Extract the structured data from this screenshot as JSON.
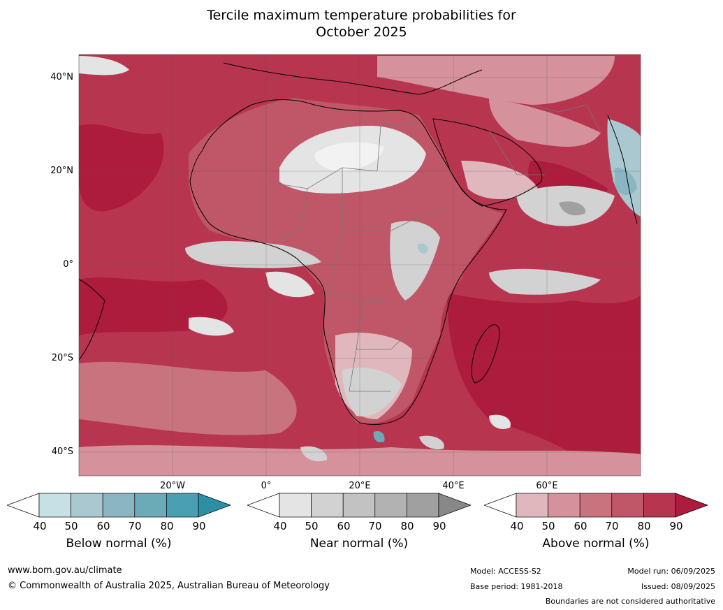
{
  "title_line1": "Tercile maximum temperature probabilities for",
  "title_line2": "October 2025",
  "map": {
    "lat_labels": [
      "40°N",
      "20°N",
      "0°",
      "20°S",
      "40°S"
    ],
    "lon_labels": [
      "20°W",
      "0°",
      "20°E",
      "40°E",
      "60°E"
    ],
    "colors": {
      "above": [
        "#e0b7bd",
        "#d5929c",
        "#c9737f",
        "#bf5768",
        "#b83550",
        "#ad1c3c"
      ],
      "near": [
        "#e4e4e4",
        "#d2d2d2",
        "#c2c2c2",
        "#b2b2b2",
        "#a0a0a0",
        "#888888"
      ],
      "below": [
        "#c7e0e6",
        "#a9c8d0",
        "#8ab6c3",
        "#6caab8",
        "#4a9fb2",
        "#2c8fa3"
      ]
    }
  },
  "legends": [
    {
      "title": "Below normal (%)",
      "ticks": [
        "40",
        "50",
        "60",
        "70",
        "80",
        "90"
      ],
      "colors": [
        "#ffffff",
        "#c7e0e6",
        "#a9c8d0",
        "#8ab6c3",
        "#6caab8",
        "#4a9fb2",
        "#2c8fa3"
      ]
    },
    {
      "title": "Near normal (%)",
      "ticks": [
        "40",
        "50",
        "60",
        "70",
        "80",
        "90"
      ],
      "colors": [
        "#ffffff",
        "#e4e4e4",
        "#d2d2d2",
        "#c2c2c2",
        "#b2b2b2",
        "#a0a0a0",
        "#888888"
      ]
    },
    {
      "title": "Above normal (%)",
      "ticks": [
        "40",
        "50",
        "60",
        "70",
        "80",
        "90"
      ],
      "colors": [
        "#ffffff",
        "#e0b7bd",
        "#d5929c",
        "#c9737f",
        "#bf5768",
        "#b83550",
        "#ad1c3c"
      ]
    }
  ],
  "footer": {
    "url": "www.bom.gov.au/climate",
    "copyright": "© Commonwealth of Australia 2025, Australian Bureau of Meteorology",
    "model": "Model: ACCESS-S2",
    "base_period": "Base period: 1981-2018",
    "model_run": "Model run: 06/09/2025",
    "issued": "Issued: 08/09/2025",
    "disclaimer": "Boundaries are not considered authoritative"
  }
}
